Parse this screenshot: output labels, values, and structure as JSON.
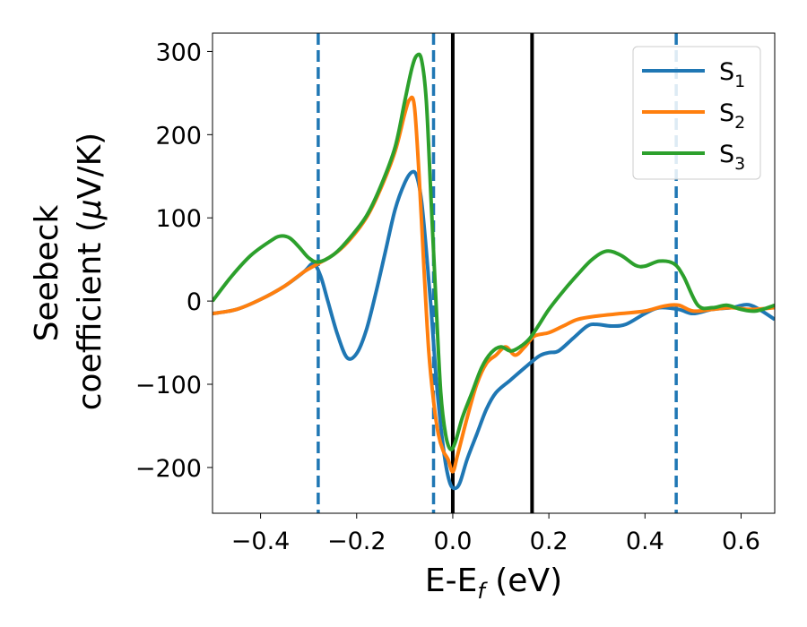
{
  "chart_data": {
    "type": "line",
    "xlabel": {
      "main": "E-E",
      "sub": "f",
      "unit": " (eV)"
    },
    "ylabel": {
      "line1": "Seebeck",
      "line2_prefix": "coefficient  (",
      "mu": "μ",
      "line2_suffix": "V/K)"
    },
    "xlim": [
      -0.5,
      0.67
    ],
    "ylim": [
      -255,
      322
    ],
    "x_ticks": [
      -0.4,
      -0.2,
      0.0,
      0.2,
      0.4,
      0.6
    ],
    "x_tick_labels": [
      "−0.4",
      "−0.2",
      "0.0",
      "0.2",
      "0.4",
      "0.6"
    ],
    "y_ticks": [
      300,
      200,
      100,
      0,
      -100,
      -200
    ],
    "y_tick_labels": [
      "300",
      "200",
      "100",
      "0",
      "−100",
      "−200"
    ],
    "grid": false,
    "legend_position": "top-right",
    "vlines_dashed": {
      "x": [
        -0.28,
        -0.04,
        0.465
      ],
      "color": "#1f77b4"
    },
    "vlines_solid": {
      "x": [
        0.0,
        0.165
      ],
      "color": "#000000"
    },
    "series": [
      {
        "name": "S",
        "sub": "1",
        "color": "#1f77b4",
        "points": [
          [
            -0.5,
            -15
          ],
          [
            -0.45,
            -10
          ],
          [
            -0.4,
            2
          ],
          [
            -0.35,
            18
          ],
          [
            -0.31,
            35
          ],
          [
            -0.29,
            45
          ],
          [
            -0.275,
            30
          ],
          [
            -0.26,
            0
          ],
          [
            -0.24,
            -40
          ],
          [
            -0.22,
            -68
          ],
          [
            -0.2,
            -63
          ],
          [
            -0.18,
            -35
          ],
          [
            -0.16,
            10
          ],
          [
            -0.14,
            60
          ],
          [
            -0.12,
            110
          ],
          [
            -0.1,
            142
          ],
          [
            -0.085,
            155
          ],
          [
            -0.075,
            150
          ],
          [
            -0.065,
            120
          ],
          [
            -0.055,
            60
          ],
          [
            -0.045,
            -10
          ],
          [
            -0.035,
            -90
          ],
          [
            -0.025,
            -150
          ],
          [
            -0.015,
            -195
          ],
          [
            -0.005,
            -220
          ],
          [
            0.005,
            -225
          ],
          [
            0.015,
            -218
          ],
          [
            0.03,
            -190
          ],
          [
            0.05,
            -160
          ],
          [
            0.07,
            -130
          ],
          [
            0.09,
            -110
          ],
          [
            0.12,
            -95
          ],
          [
            0.15,
            -80
          ],
          [
            0.18,
            -66
          ],
          [
            0.2,
            -62
          ],
          [
            0.22,
            -60
          ],
          [
            0.25,
            -45
          ],
          [
            0.28,
            -30
          ],
          [
            0.3,
            -28
          ],
          [
            0.33,
            -30
          ],
          [
            0.36,
            -28
          ],
          [
            0.4,
            -15
          ],
          [
            0.43,
            -8
          ],
          [
            0.47,
            -10
          ],
          [
            0.5,
            -15
          ],
          [
            0.54,
            -10
          ],
          [
            0.58,
            -8
          ],
          [
            0.62,
            -5
          ],
          [
            0.67,
            -22
          ]
        ]
      },
      {
        "name": "S",
        "sub": "2",
        "color": "#ff7f0e",
        "points": [
          [
            -0.5,
            -15
          ],
          [
            -0.45,
            -10
          ],
          [
            -0.4,
            2
          ],
          [
            -0.35,
            18
          ],
          [
            -0.31,
            35
          ],
          [
            -0.28,
            45
          ],
          [
            -0.25,
            55
          ],
          [
            -0.22,
            70
          ],
          [
            -0.18,
            100
          ],
          [
            -0.15,
            135
          ],
          [
            -0.12,
            180
          ],
          [
            -0.1,
            225
          ],
          [
            -0.09,
            242
          ],
          [
            -0.08,
            235
          ],
          [
            -0.07,
            150
          ],
          [
            -0.06,
            40
          ],
          [
            -0.05,
            -60
          ],
          [
            -0.04,
            -120
          ],
          [
            -0.03,
            -160
          ],
          [
            -0.02,
            -180
          ],
          [
            -0.01,
            -190
          ],
          [
            0.0,
            -205
          ],
          [
            0.01,
            -185
          ],
          [
            0.03,
            -140
          ],
          [
            0.05,
            -100
          ],
          [
            0.07,
            -75
          ],
          [
            0.09,
            -65
          ],
          [
            0.11,
            -55
          ],
          [
            0.13,
            -65
          ],
          [
            0.15,
            -55
          ],
          [
            0.17,
            -42
          ],
          [
            0.2,
            -38
          ],
          [
            0.23,
            -30
          ],
          [
            0.26,
            -22
          ],
          [
            0.3,
            -18
          ],
          [
            0.35,
            -15
          ],
          [
            0.4,
            -12
          ],
          [
            0.44,
            -6
          ],
          [
            0.47,
            -5
          ],
          [
            0.5,
            -12
          ],
          [
            0.54,
            -10
          ],
          [
            0.58,
            -8
          ],
          [
            0.62,
            -10
          ],
          [
            0.67,
            -8
          ]
        ]
      },
      {
        "name": "S",
        "sub": "3",
        "color": "#2ca02c",
        "points": [
          [
            -0.5,
            0
          ],
          [
            -0.46,
            30
          ],
          [
            -0.42,
            55
          ],
          [
            -0.38,
            72
          ],
          [
            -0.36,
            78
          ],
          [
            -0.34,
            76
          ],
          [
            -0.32,
            65
          ],
          [
            -0.3,
            52
          ],
          [
            -0.28,
            47
          ],
          [
            -0.25,
            55
          ],
          [
            -0.22,
            72
          ],
          [
            -0.18,
            102
          ],
          [
            -0.15,
            138
          ],
          [
            -0.12,
            185
          ],
          [
            -0.1,
            240
          ],
          [
            -0.085,
            280
          ],
          [
            -0.075,
            295
          ],
          [
            -0.065,
            290
          ],
          [
            -0.055,
            240
          ],
          [
            -0.045,
            120
          ],
          [
            -0.035,
            0
          ],
          [
            -0.025,
            -110
          ],
          [
            -0.015,
            -160
          ],
          [
            -0.005,
            -178
          ],
          [
            0.005,
            -170
          ],
          [
            0.02,
            -140
          ],
          [
            0.04,
            -110
          ],
          [
            0.06,
            -80
          ],
          [
            0.08,
            -62
          ],
          [
            0.1,
            -55
          ],
          [
            0.12,
            -60
          ],
          [
            0.14,
            -55
          ],
          [
            0.16,
            -45
          ],
          [
            0.18,
            -28
          ],
          [
            0.2,
            -10
          ],
          [
            0.23,
            12
          ],
          [
            0.26,
            32
          ],
          [
            0.29,
            50
          ],
          [
            0.32,
            60
          ],
          [
            0.35,
            55
          ],
          [
            0.38,
            43
          ],
          [
            0.4,
            42
          ],
          [
            0.43,
            48
          ],
          [
            0.46,
            45
          ],
          [
            0.48,
            30
          ],
          [
            0.51,
            -5
          ],
          [
            0.54,
            -8
          ],
          [
            0.57,
            -5
          ],
          [
            0.6,
            -10
          ],
          [
            0.63,
            -12
          ],
          [
            0.67,
            -5
          ]
        ]
      }
    ]
  }
}
